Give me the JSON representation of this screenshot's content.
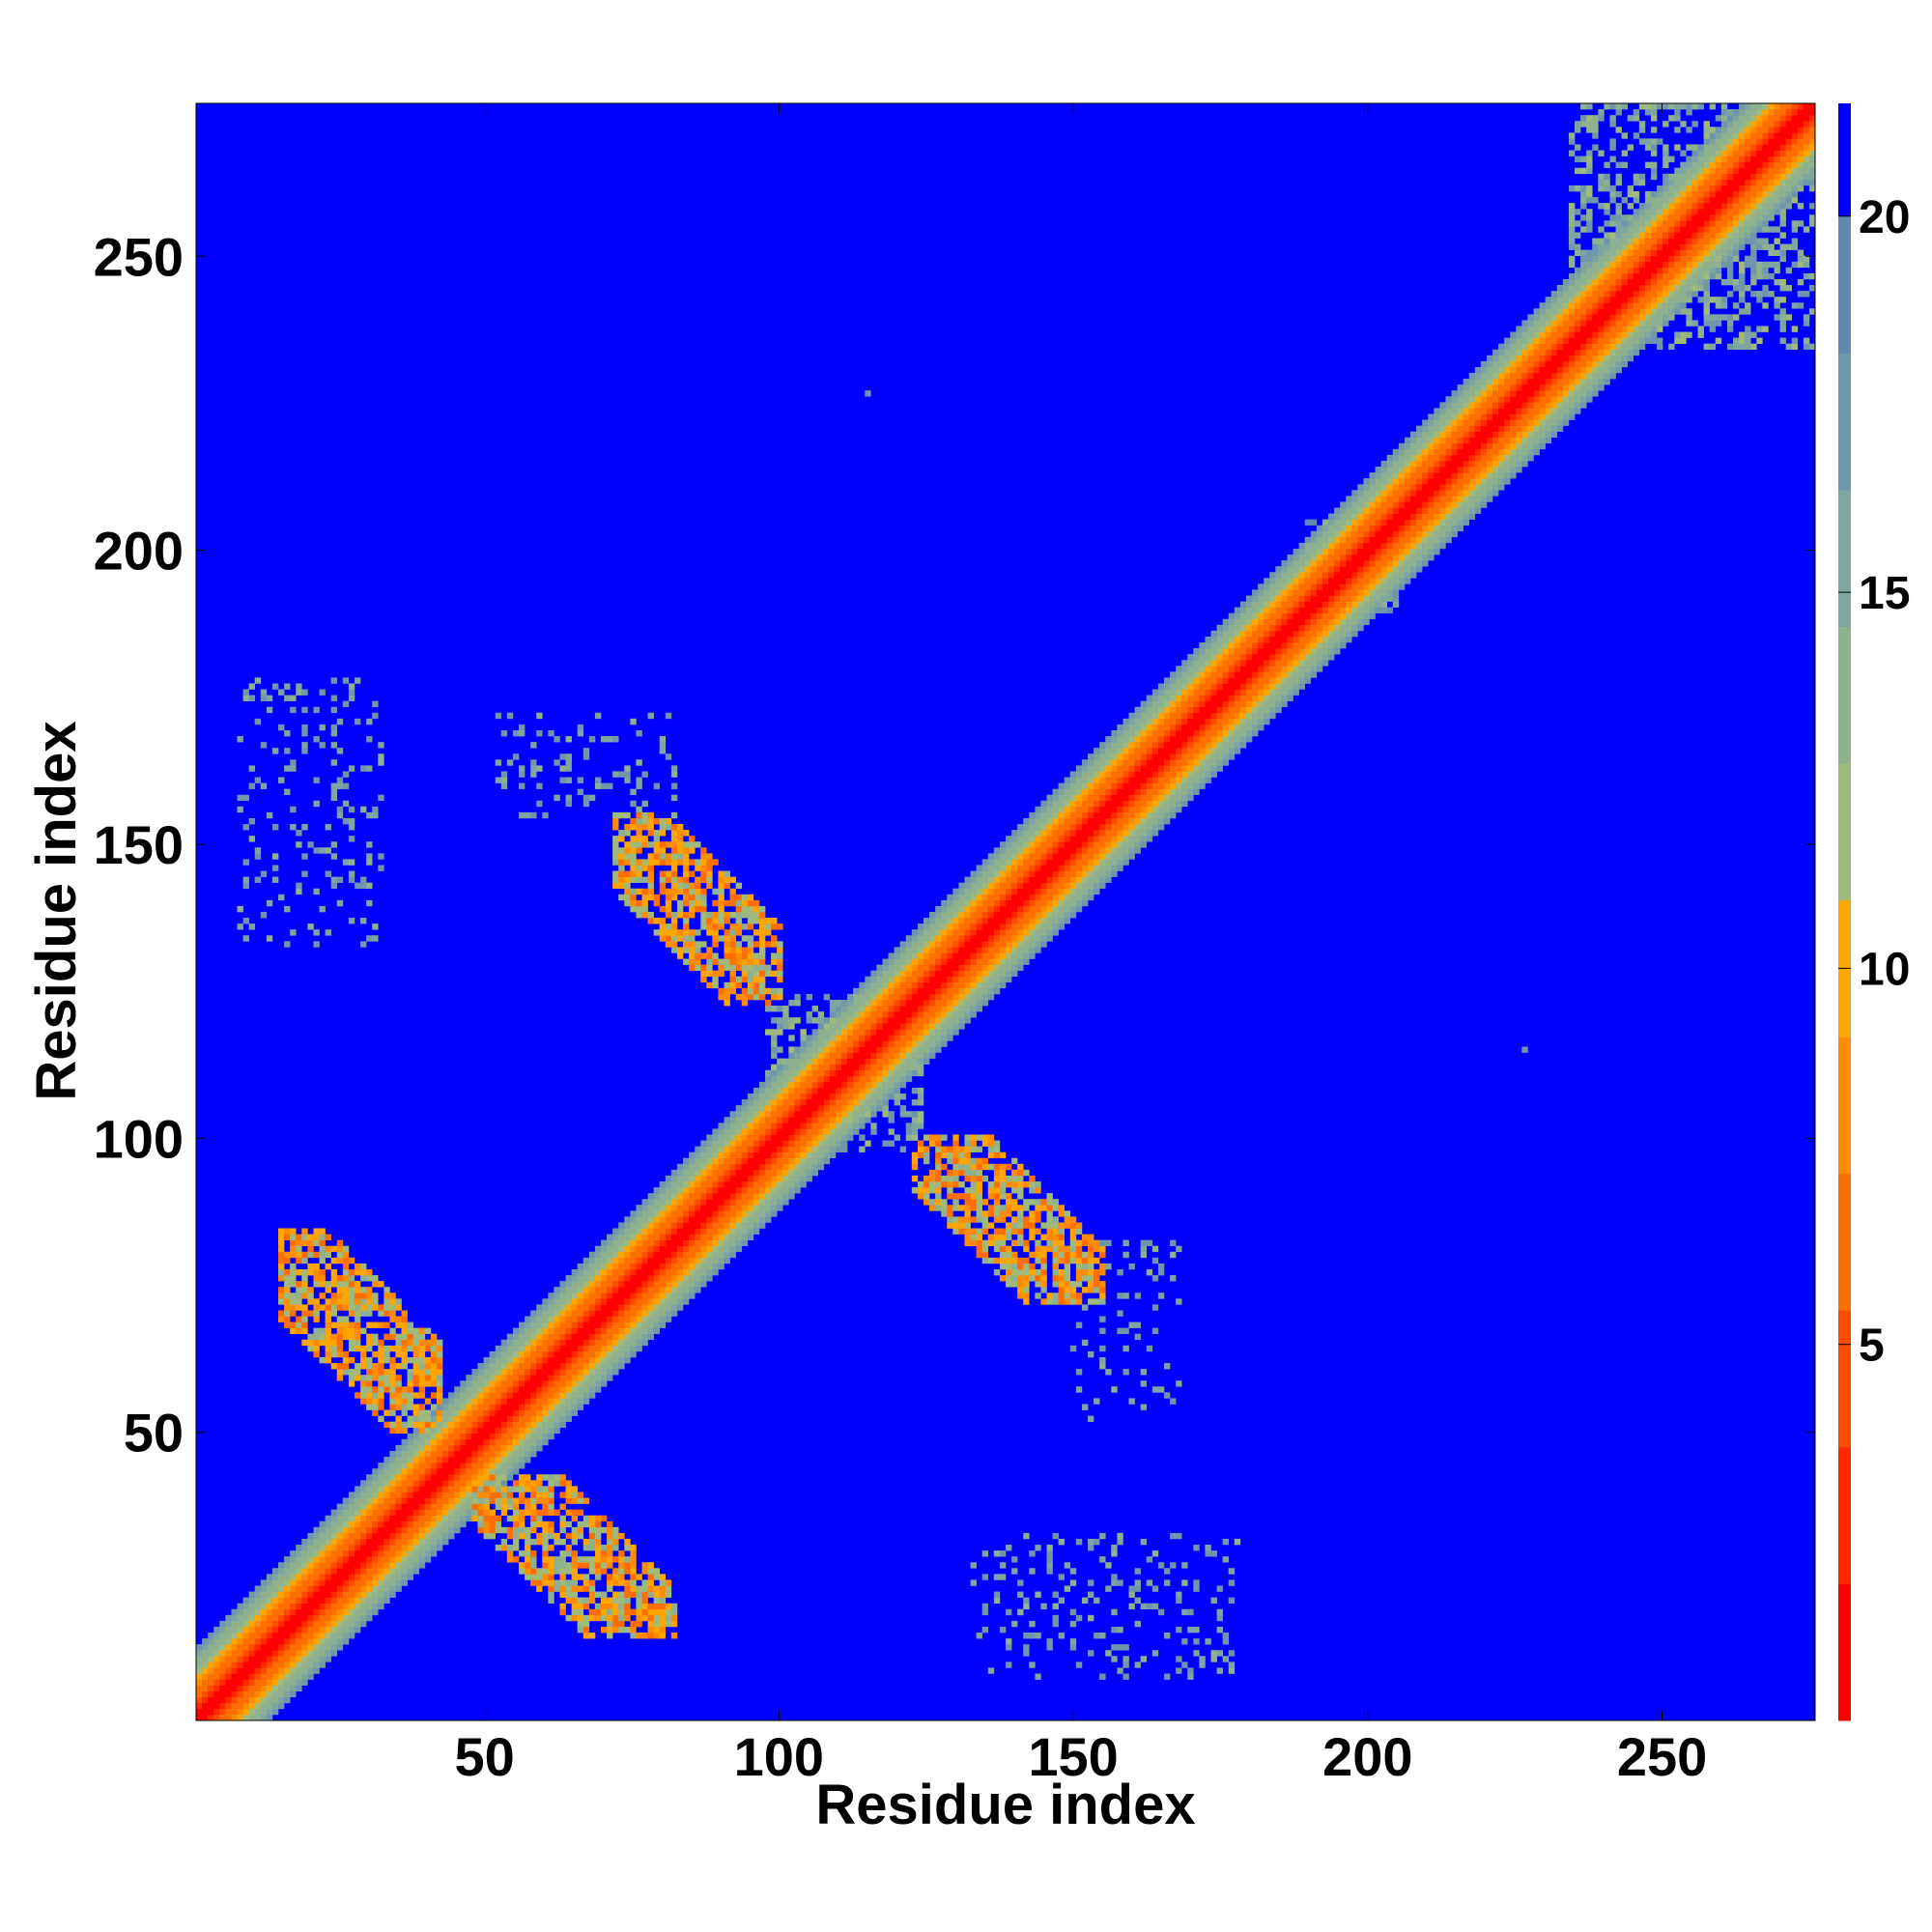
{
  "chart_data": {
    "type": "heatmap",
    "title": "",
    "xlabel": "Residue index",
    "ylabel": "Residue index",
    "xlim": [
      1,
      276
    ],
    "ylim": [
      1,
      276
    ],
    "x_ticks": [
      50,
      100,
      150,
      200,
      250
    ],
    "y_ticks": [
      50,
      100,
      150,
      200,
      250
    ],
    "colorbar": {
      "range": [
        0,
        21.5
      ],
      "ticks": [
        5,
        10,
        15,
        20
      ],
      "colors": {
        "background": "#0000ff",
        "scale": [
          "#ff0000",
          "#ff2a00",
          "#ff4c00",
          "#ff6e00",
          "#ff8c00",
          "#ffa500",
          "#9fba7a",
          "#8fb190",
          "#7ea5a0",
          "#6e97ab",
          "#5e89b3"
        ]
      }
    },
    "diagonal_band": {
      "core_distance": 0,
      "band_halfwidth_residues": 12
    },
    "contact_regions": [
      {
        "i": [
          15,
          42
        ],
        "j": [
          50,
          84
        ],
        "kind": "antiparallel",
        "min_value": 6
      },
      {
        "i": [
          48,
          82
        ],
        "j": [
          15,
          42
        ],
        "kind": "antiparallel",
        "min_value": 6
      },
      {
        "i": [
          72,
          100
        ],
        "j": [
          123,
          155
        ],
        "kind": "antiparallel",
        "min_value": 6
      },
      {
        "i": [
          123,
          155
        ],
        "j": [
          72,
          100
        ],
        "kind": "antiparallel",
        "min_value": 6
      },
      {
        "i": [
          8,
          32
        ],
        "j": [
          133,
          178
        ],
        "kind": "sparse",
        "min_value": 14
      },
      {
        "i": [
          52,
          82
        ],
        "j": [
          155,
          172
        ],
        "kind": "sparse",
        "min_value": 14
      },
      {
        "i": [
          133,
          178
        ],
        "j": [
          8,
          32
        ],
        "kind": "sparse",
        "min_value": 14
      },
      {
        "i": [
          150,
          168
        ],
        "j": [
          52,
          82
        ],
        "kind": "sparse",
        "min_value": 14
      },
      {
        "i": [
          235,
          276
        ],
        "j": [
          235,
          276
        ],
        "kind": "cluster",
        "min_value": 12
      },
      {
        "i": [
          190,
          205
        ],
        "j": [
          190,
          205
        ],
        "kind": "cluster",
        "min_value": 13
      },
      {
        "i": [
          98,
          124
        ],
        "j": [
          98,
          124
        ],
        "kind": "cluster",
        "min_value": 12
      }
    ],
    "isolated_points": [
      {
        "i": 115,
        "j": 227,
        "value": 17
      },
      {
        "i": 227,
        "j": 115,
        "value": 17
      }
    ]
  }
}
